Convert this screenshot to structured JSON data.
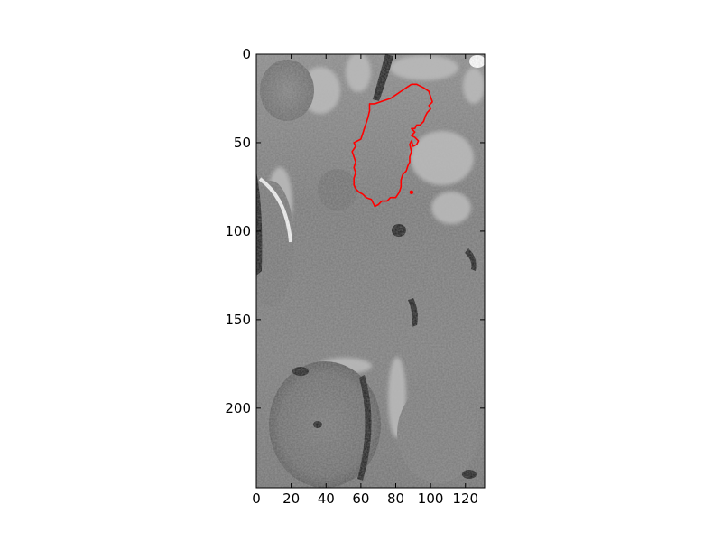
{
  "image": {
    "x_ticks": [
      "0",
      "20",
      "40",
      "60",
      "80",
      "100",
      "120"
    ],
    "y_ticks": [
      "0",
      "50",
      "100",
      "150",
      "200"
    ],
    "x_range": [
      0,
      131
    ],
    "y_range": [
      0,
      245
    ],
    "y_axis_direction": "down",
    "colors": {
      "contour": "#ff0000",
      "background": "#ffffff",
      "axis": "#000000",
      "tissue_mid": "#7a7a7a"
    }
  },
  "contour": {
    "color": "#ff0000",
    "points": [
      [
        89,
        17
      ],
      [
        92,
        17
      ],
      [
        96,
        19
      ],
      [
        99,
        21
      ],
      [
        100,
        24
      ],
      [
        101,
        27
      ],
      [
        99,
        29
      ],
      [
        100,
        31
      ],
      [
        98,
        33
      ],
      [
        97,
        35
      ],
      [
        96,
        38
      ],
      [
        94,
        40
      ],
      [
        92,
        40
      ],
      [
        91,
        42
      ],
      [
        89,
        42
      ],
      [
        91,
        44
      ],
      [
        89,
        46
      ],
      [
        91,
        47
      ],
      [
        93,
        49
      ],
      [
        92,
        51
      ],
      [
        90,
        52
      ],
      [
        89,
        49
      ],
      [
        88,
        51
      ],
      [
        89,
        55
      ],
      [
        88,
        58
      ],
      [
        88,
        61
      ],
      [
        87,
        63
      ],
      [
        86,
        66
      ],
      [
        84,
        68
      ],
      [
        83,
        71
      ],
      [
        83,
        75
      ],
      [
        82,
        78
      ],
      [
        80,
        81
      ],
      [
        77,
        81
      ],
      [
        75,
        83
      ],
      [
        72,
        83
      ],
      [
        70,
        85
      ],
      [
        68,
        86
      ],
      [
        67,
        84
      ],
      [
        66,
        82
      ],
      [
        63,
        81
      ],
      [
        61,
        79
      ],
      [
        59,
        78
      ],
      [
        57,
        76
      ],
      [
        56,
        74
      ],
      [
        56,
        70
      ],
      [
        57,
        67
      ],
      [
        56,
        64
      ],
      [
        57,
        61
      ],
      [
        56,
        58
      ],
      [
        55,
        55
      ],
      [
        57,
        52
      ],
      [
        56,
        50
      ],
      [
        58,
        49
      ],
      [
        60,
        48
      ],
      [
        61,
        45
      ],
      [
        62,
        42
      ],
      [
        63,
        39
      ],
      [
        64,
        36
      ],
      [
        65,
        32
      ],
      [
        65,
        28
      ],
      [
        68,
        28
      ],
      [
        71,
        27
      ],
      [
        74,
        26
      ],
      [
        77,
        25
      ],
      [
        80,
        23
      ],
      [
        83,
        21
      ],
      [
        86,
        19
      ],
      [
        89,
        17
      ]
    ],
    "dot": [
      89,
      78
    ]
  }
}
